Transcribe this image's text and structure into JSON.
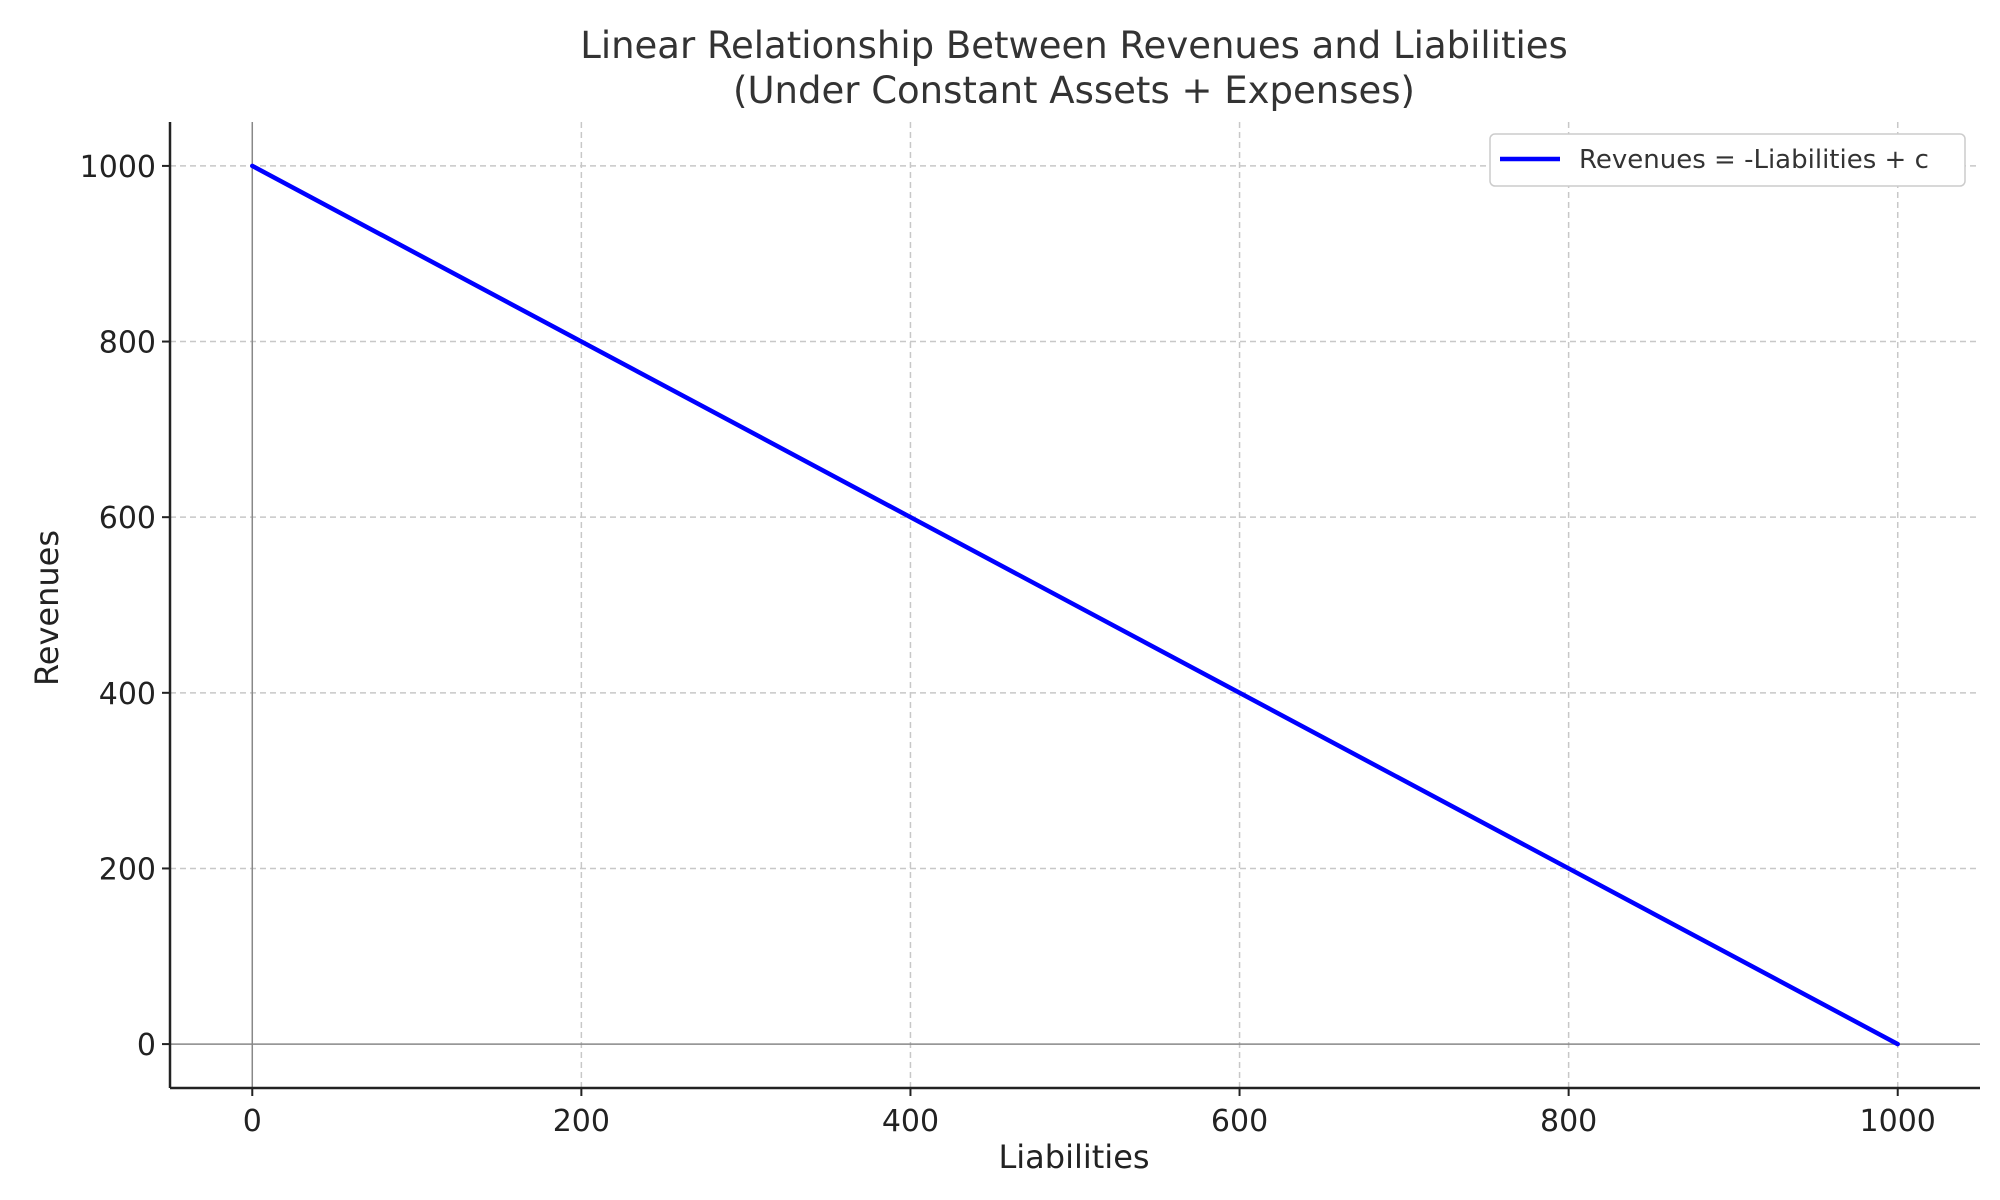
{
  "chart_data": {
    "type": "line",
    "title": "Linear Relationship Between Revenues and Liabilities",
    "subtitle": "(Under Constant Assets + Expenses)",
    "xlabel": "Liabilities",
    "ylabel": "Revenues",
    "xlim": [
      -50,
      1050
    ],
    "ylim": [
      -50,
      1050
    ],
    "xticks": [
      0,
      200,
      400,
      600,
      800,
      1000
    ],
    "yticks": [
      0,
      200,
      400,
      600,
      800,
      1000
    ],
    "grid": true,
    "legend_position": "top-right",
    "series": [
      {
        "name": "Revenues = -Liabilities + c",
        "color": "#0000ff",
        "x": [
          0,
          1000
        ],
        "y": [
          1000,
          0
        ]
      }
    ]
  }
}
